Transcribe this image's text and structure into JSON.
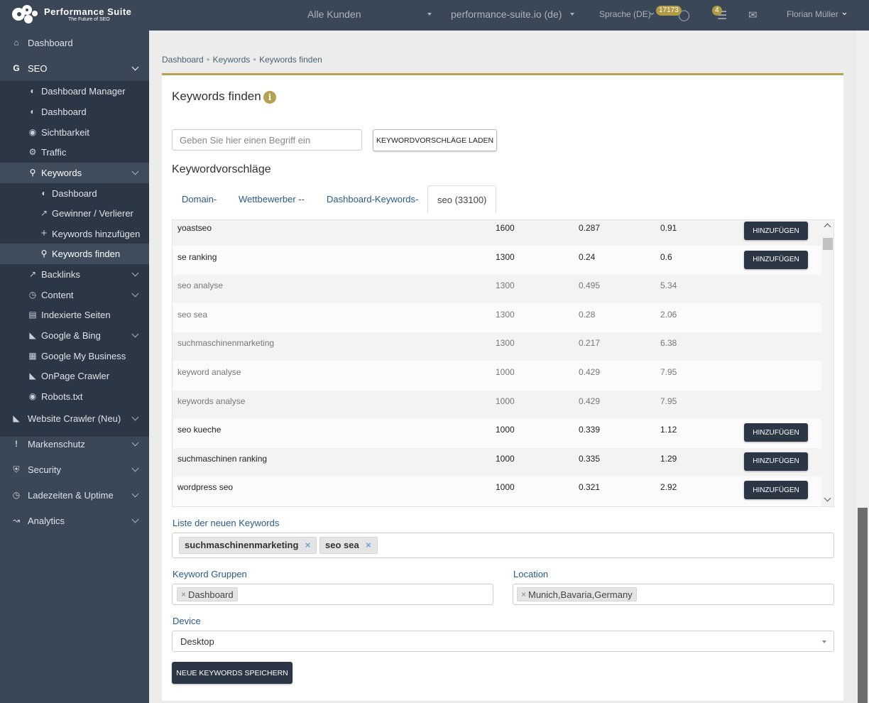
{
  "topbar": {
    "brand": "Performance Suite",
    "tagline": "The Future of SEO",
    "customer_select": "Alle Kunden",
    "domain_select": "performance-suite.io (de)",
    "language": "Sprache (DE)",
    "notification_count": "17173",
    "tasks_count": "4",
    "user_name": "Florian Müller"
  },
  "sidebar": {
    "dashboard": "Dashboard",
    "seo": "SEO",
    "seo_items": [
      "Dashboard Manager",
      "Dashboard",
      "Sichtbarkeit",
      "Traffic"
    ],
    "keywords": "Keywords",
    "keyword_items": [
      "Dashboard",
      "Gewinner / Verlierer",
      "Keywords hinzufügen",
      "Keywords finden"
    ],
    "more_items": [
      "Backlinks",
      "Content",
      "Indexierte Seiten",
      "Google & Bing",
      "Google My Business",
      "OnPage Crawler",
      "Robots.txt"
    ],
    "sections": [
      "Website Crawler (Neu)",
      "Markenschutz",
      "Security",
      "Ladezeiten & Uptime",
      "Analytics"
    ]
  },
  "breadcrumb": [
    "Dashboard",
    "Keywords",
    "Keywords finden"
  ],
  "page": {
    "title": "Keywords finden",
    "search_placeholder": "Geben Sie hier einen Begriff ein",
    "load_button": "KEYWORDVORSCHLÄGE LADEN",
    "suggestions_title": "Keywordvorschläge",
    "tabs": [
      "Domain-",
      "Wettbewerber --",
      "Dashboard-Keywords-",
      "seo (33100)"
    ],
    "add_label": "HINZUFÜGEN",
    "rows": [
      {
        "keyword": "yoastseo",
        "volume": "1600",
        "cpc": "0.287",
        "competition": "0.91",
        "addable": true
      },
      {
        "keyword": "se ranking",
        "volume": "1300",
        "cpc": "0.24",
        "competition": "0.6",
        "addable": true
      },
      {
        "keyword": "seo analyse",
        "volume": "1300",
        "cpc": "0.495",
        "competition": "5.34",
        "addable": false
      },
      {
        "keyword": "seo sea",
        "volume": "1300",
        "cpc": "0.28",
        "competition": "2.06",
        "addable": false
      },
      {
        "keyword": "suchmaschinenmarketing",
        "volume": "1300",
        "cpc": "0.217",
        "competition": "6.38",
        "addable": false
      },
      {
        "keyword": "keyword analyse",
        "volume": "1000",
        "cpc": "0.429",
        "competition": "7.95",
        "addable": false
      },
      {
        "keyword": "keywords analyse",
        "volume": "1000",
        "cpc": "0.429",
        "competition": "7.95",
        "addable": false
      },
      {
        "keyword": "seo kueche",
        "volume": "1000",
        "cpc": "0.339",
        "competition": "1.12",
        "addable": true
      },
      {
        "keyword": "suchmaschinen ranking",
        "volume": "1000",
        "cpc": "0.335",
        "competition": "1.29",
        "addable": true
      },
      {
        "keyword": "wordpress seo",
        "volume": "1000",
        "cpc": "0.321",
        "competition": "2.92",
        "addable": true
      }
    ],
    "new_keywords_label": "Liste der neuen Keywords",
    "new_keywords": [
      "suchmaschinenmarketing",
      "seo sea"
    ],
    "groups_label": "Keyword Gruppen",
    "groups": [
      "Dashboard"
    ],
    "location_label": "Location",
    "locations": [
      "Munich,Bavaria,Germany"
    ],
    "device_label": "Device",
    "device_value": "Desktop",
    "save_button": "NEUE KEYWORDS SPEICHERN"
  },
  "colors": {
    "sidebar_bg": "#3a4756",
    "sidebar_sub_bg": "#2b3744",
    "accent": "#b6a24e",
    "link": "#2a5a8a",
    "button_dark": "#2b3744"
  }
}
